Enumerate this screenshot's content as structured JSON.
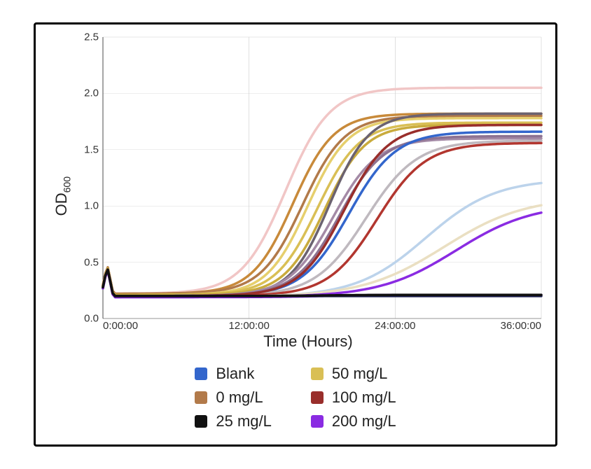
{
  "chart": {
    "type": "line",
    "background_color": "#ffffff",
    "panel_border_color": "#000000",
    "grid_color": "#cfcfcf",
    "axis_color": "#444444",
    "ylabel_html": "OD<sub>600</sub>",
    "ylabel_fontsize": 22,
    "xlabel": "Time (Hours)",
    "xlabel_fontsize": 22,
    "xlim": [
      0,
      36
    ],
    "ylim": [
      0,
      2.5
    ],
    "xticks": [
      {
        "v": 0,
        "label": "0:00:00"
      },
      {
        "v": 12,
        "label": "12:00:00"
      },
      {
        "v": 24,
        "label": "24:00:00"
      },
      {
        "v": 36,
        "label": "36:00:00"
      }
    ],
    "yticks": [
      {
        "v": 0.0,
        "label": "0.0"
      },
      {
        "v": 0.5,
        "label": "0.5"
      },
      {
        "v": 1.0,
        "label": "1.0"
      },
      {
        "v": 1.5,
        "label": "1.5"
      },
      {
        "v": 2.0,
        "label": "2.0"
      },
      {
        "v": 2.5,
        "label": "2.5"
      }
    ],
    "line_width": 3.5,
    "spike": {
      "x": 0.35,
      "base": 0.2,
      "peak": 0.46,
      "width": 0.5
    }
  },
  "legend": {
    "label_fontsize": 22,
    "items": [
      {
        "key": "blank",
        "label": "Blank",
        "color": "#3366cc"
      },
      {
        "key": "c50",
        "label": "50 mg/L",
        "color": "#d9bf55"
      },
      {
        "key": "c0",
        "label": "0 mg/L",
        "color": "#b27a4a"
      },
      {
        "key": "c100",
        "label": "100 mg/L",
        "color": "#992e2b"
      },
      {
        "key": "c25",
        "label": "25 mg/L",
        "color": "#111111"
      },
      {
        "key": "c200",
        "label": "200 mg/L",
        "color": "#8a2be2"
      }
    ]
  },
  "series": [
    {
      "key": "pinkbg_high",
      "color": "#f1c6c6",
      "base": 0.22,
      "plateau": 2.05,
      "t_mid": 15.0,
      "k": 0.55,
      "spike": true
    },
    {
      "key": "c0_a",
      "color": "#c88a3a",
      "base": 0.22,
      "plateau": 1.82,
      "t_mid": 15.6,
      "k": 0.6,
      "spike": true
    },
    {
      "key": "c0_b",
      "color": "#b27a4a",
      "base": 0.22,
      "plateau": 1.8,
      "t_mid": 16.4,
      "k": 0.58,
      "spike": true
    },
    {
      "key": "c50_a",
      "color": "#e6cf6d",
      "base": 0.21,
      "plateau": 1.78,
      "t_mid": 16.8,
      "k": 0.6,
      "spike": true
    },
    {
      "key": "c50_b",
      "color": "#d9bf55",
      "base": 0.21,
      "plateau": 1.74,
      "t_mid": 17.6,
      "k": 0.58,
      "spike": true
    },
    {
      "key": "c50_c",
      "color": "#c9ab3d",
      "base": 0.21,
      "plateau": 1.72,
      "t_mid": 18.2,
      "k": 0.6,
      "spike": true
    },
    {
      "key": "grey_a",
      "color": "#6b6270",
      "base": 0.2,
      "plateau": 1.82,
      "t_mid": 18.6,
      "k": 0.62,
      "spike": true
    },
    {
      "key": "mauve_a",
      "color": "#a48aa6",
      "base": 0.2,
      "plateau": 1.6,
      "t_mid": 18.9,
      "k": 0.55,
      "spike": true
    },
    {
      "key": "mauve_b",
      "color": "#8d7291",
      "base": 0.2,
      "plateau": 1.62,
      "t_mid": 19.4,
      "k": 0.55,
      "spike": true
    },
    {
      "key": "blank_a",
      "color": "#3366cc",
      "base": 0.2,
      "plateau": 1.66,
      "t_mid": 20.2,
      "k": 0.52,
      "spike": true
    },
    {
      "key": "grey_b",
      "color": "#bfb9bf",
      "base": 0.2,
      "plateau": 1.58,
      "t_mid": 21.6,
      "k": 0.48,
      "spike": true
    },
    {
      "key": "c100_a",
      "color": "#b2362f",
      "base": 0.2,
      "plateau": 1.56,
      "t_mid": 22.5,
      "k": 0.5,
      "spike": true
    },
    {
      "key": "c100_b",
      "color": "#992e2b",
      "base": 0.2,
      "plateau": 1.72,
      "t_mid": 19.8,
      "k": 0.55,
      "spike": true
    },
    {
      "key": "ltblue_a",
      "color": "#bcd3eb",
      "base": 0.19,
      "plateau": 1.24,
      "t_mid": 26.5,
      "k": 0.35,
      "spike": true
    },
    {
      "key": "pale_a",
      "color": "#eadfc2",
      "base": 0.19,
      "plateau": 1.08,
      "t_mid": 28.0,
      "k": 0.3,
      "spike": true
    },
    {
      "key": "c200_a",
      "color": "#8a2be2",
      "base": 0.19,
      "plateau": 1.02,
      "t_mid": 29.0,
      "k": 0.32,
      "spike": true
    },
    {
      "key": "c200_flat",
      "color": "#7a1fc9",
      "base": 0.19,
      "plateau": 0.21,
      "t_mid": 18.0,
      "k": 0.5,
      "spike": true
    },
    {
      "key": "navy_flat",
      "color": "#1a1d4d",
      "base": 0.2,
      "plateau": 0.2,
      "t_mid": 18.0,
      "k": 0.5,
      "spike": true
    },
    {
      "key": "c25_flat",
      "color": "#111111",
      "base": 0.2,
      "plateau": 0.21,
      "t_mid": 18.0,
      "k": 0.5,
      "spike": true
    }
  ]
}
